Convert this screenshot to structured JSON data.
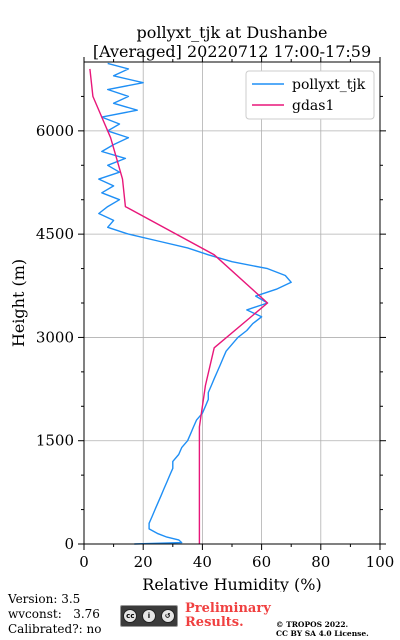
{
  "chart_data": {
    "type": "line",
    "title_line1": "pollyxt_tjk at Dushanbe",
    "title_line2": "[Averaged] 20220712 17:00-17:59",
    "xlabel": "Relative Humidity (%)",
    "ylabel": "Height (m)",
    "xlim": [
      0,
      100
    ],
    "ylim": [
      0,
      7000
    ],
    "xticks": [
      "0",
      "20",
      "40",
      "60",
      "80",
      "100"
    ],
    "yticks": [
      "0",
      "1500",
      "3000",
      "4500",
      "6000"
    ],
    "grid": true,
    "legend_position": "top-right",
    "series": [
      {
        "name": "pollyxt_tjk",
        "color": "#1f8ff5",
        "points": [
          [
            17,
            0
          ],
          [
            33,
            20
          ],
          [
            32,
            60
          ],
          [
            28,
            100
          ],
          [
            25,
            150
          ],
          [
            22,
            220
          ],
          [
            22,
            300
          ],
          [
            23,
            400
          ],
          [
            24,
            500
          ],
          [
            25,
            600
          ],
          [
            26,
            700
          ],
          [
            27,
            800
          ],
          [
            28,
            900
          ],
          [
            29,
            1000
          ],
          [
            30,
            1100
          ],
          [
            30,
            1200
          ],
          [
            32,
            1300
          ],
          [
            33,
            1400
          ],
          [
            35,
            1500
          ],
          [
            36,
            1600
          ],
          [
            37,
            1700
          ],
          [
            38,
            1800
          ],
          [
            40,
            1900
          ],
          [
            41,
            2000
          ],
          [
            42,
            2100
          ],
          [
            42,
            2200
          ],
          [
            43,
            2300
          ],
          [
            44,
            2400
          ],
          [
            45,
            2500
          ],
          [
            46,
            2600
          ],
          [
            47,
            2700
          ],
          [
            48,
            2800
          ],
          [
            50,
            2900
          ],
          [
            52,
            3000
          ],
          [
            55,
            3100
          ],
          [
            57,
            3200
          ],
          [
            60,
            3300
          ],
          [
            55,
            3400
          ],
          [
            62,
            3500
          ],
          [
            58,
            3600
          ],
          [
            65,
            3700
          ],
          [
            70,
            3800
          ],
          [
            68,
            3900
          ],
          [
            62,
            4000
          ],
          [
            50,
            4100
          ],
          [
            42,
            4200
          ],
          [
            35,
            4300
          ],
          [
            25,
            4400
          ],
          [
            15,
            4500
          ],
          [
            8,
            4600
          ],
          [
            10,
            4700
          ],
          [
            5,
            4800
          ],
          [
            8,
            4900
          ],
          [
            12,
            5000
          ],
          [
            6,
            5100
          ],
          [
            10,
            5200
          ],
          [
            5,
            5300
          ],
          [
            12,
            5400
          ],
          [
            8,
            5500
          ],
          [
            14,
            5600
          ],
          [
            6,
            5700
          ],
          [
            10,
            5800
          ],
          [
            15,
            5900
          ],
          [
            8,
            6000
          ],
          [
            12,
            6100
          ],
          [
            6,
            6200
          ],
          [
            18,
            6300
          ],
          [
            10,
            6400
          ],
          [
            15,
            6500
          ],
          [
            8,
            6600
          ],
          [
            20,
            6700
          ],
          [
            10,
            6800
          ],
          [
            15,
            6900
          ],
          [
            8,
            6980
          ]
        ]
      },
      {
        "name": "gdas1",
        "color": "#e8177a",
        "points": [
          [
            39,
            0
          ],
          [
            39,
            500
          ],
          [
            39,
            1000
          ],
          [
            39,
            1500
          ],
          [
            39,
            1700
          ],
          [
            40,
            2000
          ],
          [
            41,
            2300
          ],
          [
            44,
            2850
          ],
          [
            62,
            3500
          ],
          [
            44,
            4200
          ],
          [
            14,
            4900
          ],
          [
            13,
            5300
          ],
          [
            11,
            5600
          ],
          [
            9,
            5900
          ],
          [
            3,
            6500
          ],
          [
            2,
            6900
          ]
        ]
      }
    ]
  },
  "footer": {
    "version": "Version: 3.5",
    "wvconst": "wvconst:   3.76",
    "calibrated": "Calibrated?: no",
    "prelim_line1": "Preliminary",
    "prelim_line2": "Results.",
    "copyright_line1": "© TROPOS 2022.",
    "copyright_line2": "CC BY SA 4.0 License."
  }
}
